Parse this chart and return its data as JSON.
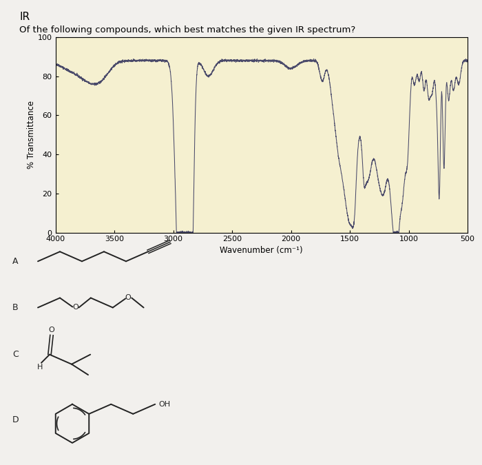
{
  "title": "IR",
  "question": "Of the following compounds, which best matches the given IR spectrum?",
  "ylabel": "% Transmittance",
  "xlabel": "Wavenumber (cm⁻¹)",
  "xlim": [
    4000,
    500
  ],
  "ylim": [
    0,
    100
  ],
  "yticks": [
    0,
    20,
    40,
    60,
    80,
    100
  ],
  "xticks": [
    4000,
    3500,
    3000,
    2500,
    2000,
    1500,
    1000,
    500
  ],
  "bg_color": "#f5f0d0",
  "line_color": "#4a4a6a",
  "fig_bg": "#f2f0ed",
  "title_fontsize": 11,
  "question_fontsize": 9.5,
  "axis_fontsize": 8,
  "label_fontsize": 8.5
}
